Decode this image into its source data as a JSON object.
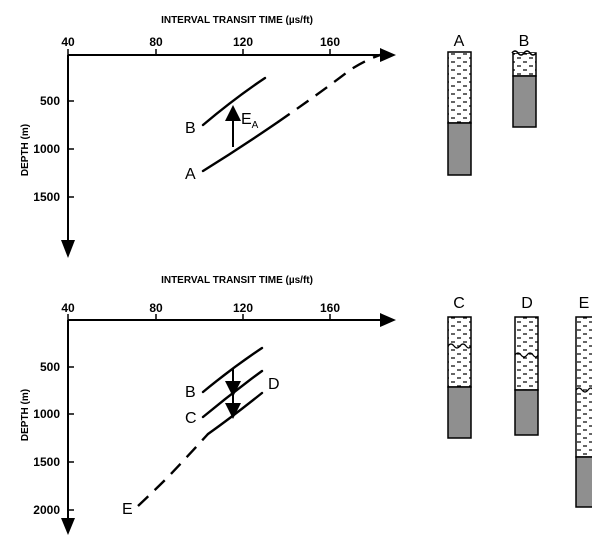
{
  "top_panel": {
    "title": "INTERVAL TRANSIT TIME (µs/ft)",
    "x_ticks": [
      "40",
      "80",
      "120",
      "160"
    ],
    "y_label": "DEPTH (m)",
    "y_ticks": [
      "500",
      "1000",
      "1500"
    ],
    "curve_labels": {
      "b": "B",
      "a": "A",
      "erosion": "E",
      "erosion_sub": "A"
    },
    "column_labels": [
      "A",
      "B"
    ]
  },
  "bottom_panel": {
    "title": "INTERVAL TRANSIT TIME (µs/ft)",
    "x_ticks": [
      "40",
      "80",
      "120",
      "160"
    ],
    "y_label": "DEPTH (m)",
    "y_ticks": [
      "500",
      "1000",
      "1500",
      "2000"
    ],
    "curve_labels": {
      "b": "B",
      "c": "C",
      "d": "D",
      "e": "E"
    },
    "column_labels": [
      "C",
      "D",
      "E"
    ]
  },
  "colors": {
    "ink": "#000000",
    "sand": "#8f8f8f",
    "background": "#ffffff"
  }
}
